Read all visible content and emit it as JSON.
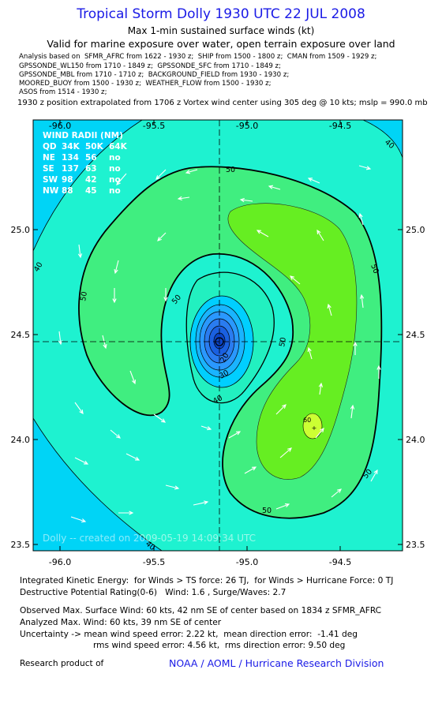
{
  "header": {
    "title": "Tropical Storm Dolly 1930 UTC 22 JUL 2008",
    "subtitle": "Max 1-min sustained surface winds (kt)",
    "validity": "Valid for marine exposure over water, open terrain exposure over land",
    "analysis_lines": [
      "Analysis based on  SFMR_AFRC from 1622 - 1930 z;  SHIP from 1500 - 1800 z;  CMAN from 1509 - 1929 z;",
      "GPSSONDE_WL150 from 1710 - 1849 z;  GPSSONDE_SFC from 1710 - 1849 z;",
      "GPSSONDE_MBL from 1710 - 1710 z;  BACKGROUND_FIELD from 1930 - 1930 z;",
      "MOORED_BUOY from 1500 - 1930 z;  WEATHER_FLOW from 1500 - 1930 z;",
      "ASOS from 1514 - 1930 z;"
    ],
    "position_line": "1930 z position extrapolated from 1706 z Vortex wind center using 305 deg @ 10 kts; mslp = 990.0 mb"
  },
  "map": {
    "x_ticks": [
      "-96.0",
      "-95.5",
      "-95.0",
      "-94.5"
    ],
    "y_ticks": [
      "25.0",
      "24.5",
      "24.0",
      "23.5"
    ],
    "wind_radii": {
      "title": "WIND RADII (NM)",
      "rows": [
        [
          "QD",
          "34K",
          "50K",
          "64K"
        ],
        [
          "NE",
          "134",
          "56",
          "no"
        ],
        [
          "SE",
          "137",
          "63",
          "no"
        ],
        [
          "SW",
          "98",
          "42",
          "no"
        ],
        [
          "NW",
          "88",
          "45",
          "no"
        ]
      ]
    },
    "contour_labels": [
      "40",
      "50",
      "40",
      "50",
      "50",
      "50",
      "50",
      "40",
      "30",
      "20",
      "60",
      "50",
      "50",
      "40"
    ],
    "watermark": "Dolly -- created on 2009-05-19 14:09:34 UTC"
  },
  "footer": {
    "lines": [
      "Integrated Kinetic Energy:  for Winds > TS force: 26 TJ,  for Winds > Hurricane Force: 0 TJ",
      "Destructive Potential Rating(0-6)   Wind: 1.6 , Surge/Waves: 2.7",
      "Observed Max. Surface Wind: 60 kts, 42 nm SE of center based on 1834 z SFMR_AFRC",
      "Analyzed Max. Wind: 60 kts, 39 nm SE of center",
      "Uncertainty -> mean wind speed error: 2.22 kt,  mean direction error:  -1.41 deg",
      "rms wind speed error: 4.56 kt,  rms direction error: 9.50 deg"
    ],
    "credit_prefix": "Research product of",
    "credit": "NOAA / AOML / Hurricane Research Division"
  }
}
